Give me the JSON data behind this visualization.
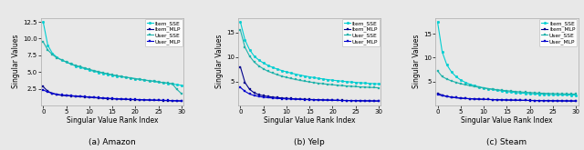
{
  "subplots": [
    {
      "title": "(a) Amazon",
      "xlabel": "Singular Value Rank Index",
      "ylabel": "Singular Values",
      "series": {
        "Item_SSE": {
          "color": "#00CED1",
          "marker": "o",
          "markersize": 2.0,
          "linewidth": 0.8,
          "values": [
            12.5,
            9.0,
            7.8,
            7.2,
            6.8,
            6.5,
            6.2,
            5.9,
            5.7,
            5.5,
            5.3,
            5.1,
            4.95,
            4.8,
            4.65,
            4.5,
            4.4,
            4.3,
            4.2,
            4.1,
            4.0,
            3.9,
            3.8,
            3.7,
            3.6,
            3.5,
            3.4,
            3.3,
            3.2,
            3.1,
            3.0
          ]
        },
        "Item_MLP": {
          "color": "#00008B",
          "marker": "s",
          "markersize": 2.0,
          "linewidth": 0.8,
          "values": [
            2.8,
            2.1,
            1.8,
            1.6,
            1.5,
            1.45,
            1.4,
            1.35,
            1.3,
            1.25,
            1.2,
            1.15,
            1.1,
            1.05,
            1.0,
            0.97,
            0.94,
            0.91,
            0.88,
            0.86,
            0.84,
            0.82,
            0.8,
            0.78,
            0.76,
            0.74,
            0.72,
            0.7,
            0.68,
            0.66,
            0.64
          ]
        },
        "User_SSE": {
          "color": "#20B2AA",
          "marker": "s",
          "markersize": 2.0,
          "linewidth": 0.8,
          "values": [
            9.5,
            8.3,
            7.6,
            7.1,
            6.8,
            6.5,
            6.2,
            6.0,
            5.8,
            5.6,
            5.4,
            5.2,
            5.05,
            4.88,
            4.72,
            4.58,
            4.44,
            4.32,
            4.2,
            4.1,
            3.98,
            3.88,
            3.78,
            3.68,
            3.6,
            3.5,
            3.42,
            3.32,
            3.22,
            2.4,
            1.75
          ]
        },
        "User_MLP": {
          "color": "#0000CD",
          "marker": "s",
          "markersize": 2.0,
          "linewidth": 0.8,
          "values": [
            2.3,
            2.0,
            1.8,
            1.65,
            1.55,
            1.5,
            1.45,
            1.4,
            1.35,
            1.3,
            1.25,
            1.2,
            1.15,
            1.1,
            1.06,
            1.02,
            0.99,
            0.96,
            0.93,
            0.9,
            0.88,
            0.85,
            0.83,
            0.81,
            0.79,
            0.77,
            0.75,
            0.73,
            0.71,
            0.69,
            0.67
          ]
        }
      }
    },
    {
      "title": "(b) Yelp",
      "xlabel": "Singular Value Rank Index",
      "ylabel": "Singular Values",
      "series": {
        "Item_SSE": {
          "color": "#00CED1",
          "marker": "o",
          "markersize": 2.0,
          "linewidth": 0.8,
          "values": [
            17.2,
            13.5,
            11.5,
            10.2,
            9.4,
            8.8,
            8.3,
            7.9,
            7.55,
            7.25,
            6.98,
            6.74,
            6.52,
            6.32,
            6.13,
            5.96,
            5.8,
            5.65,
            5.52,
            5.4,
            5.28,
            5.18,
            5.08,
            4.99,
            4.91,
            4.83,
            4.76,
            4.7,
            4.63,
            4.57,
            4.52
          ]
        },
        "Item_MLP": {
          "color": "#00008B",
          "marker": "s",
          "markersize": 2.0,
          "linewidth": 0.8,
          "values": [
            8.0,
            4.8,
            3.4,
            2.7,
            2.3,
            2.1,
            1.95,
            1.82,
            1.72,
            1.64,
            1.57,
            1.51,
            1.46,
            1.42,
            1.38,
            1.34,
            1.31,
            1.28,
            1.25,
            1.22,
            1.2,
            1.17,
            1.15,
            1.13,
            1.11,
            1.09,
            1.08,
            1.06,
            1.05,
            1.03,
            1.02
          ]
        },
        "User_SSE": {
          "color": "#20B2AA",
          "marker": "s",
          "markersize": 2.0,
          "linewidth": 0.8,
          "values": [
            15.5,
            12.0,
            10.2,
            9.0,
            8.2,
            7.6,
            7.1,
            6.75,
            6.4,
            6.1,
            5.85,
            5.62,
            5.42,
            5.23,
            5.07,
            4.92,
            4.78,
            4.66,
            4.54,
            4.44,
            4.34,
            4.25,
            4.17,
            4.1,
            4.03,
            3.97,
            3.91,
            3.86,
            3.81,
            3.77,
            3.72
          ]
        },
        "User_MLP": {
          "color": "#0000CD",
          "marker": "s",
          "markersize": 2.0,
          "linewidth": 0.8,
          "values": [
            3.8,
            3.0,
            2.45,
            2.15,
            1.95,
            1.8,
            1.7,
            1.62,
            1.55,
            1.5,
            1.45,
            1.41,
            1.37,
            1.34,
            1.31,
            1.28,
            1.25,
            1.23,
            1.21,
            1.18,
            1.16,
            1.14,
            1.12,
            1.11,
            1.09,
            1.08,
            1.06,
            1.05,
            1.04,
            1.02,
            1.01
          ]
        }
      }
    },
    {
      "title": "(c) Steam",
      "xlabel": "Singular Value Rank Index",
      "ylabel": "Singular Values",
      "series": {
        "Item_SSE": {
          "color": "#00CED1",
          "marker": "o",
          "markersize": 2.0,
          "linewidth": 0.8,
          "values": [
            17.5,
            11.2,
            8.5,
            7.0,
            6.0,
            5.3,
            4.8,
            4.4,
            4.1,
            3.85,
            3.65,
            3.45,
            3.28,
            3.12,
            2.98,
            2.85,
            2.74,
            2.64,
            2.55,
            2.48,
            2.42,
            2.37,
            2.32,
            2.28,
            2.25,
            2.22,
            2.19,
            2.17,
            2.15,
            2.13,
            2.12
          ]
        },
        "Item_MLP": {
          "color": "#00008B",
          "marker": "s",
          "markersize": 2.0,
          "linewidth": 0.8,
          "values": [
            2.5,
            2.1,
            1.85,
            1.68,
            1.56,
            1.47,
            1.4,
            1.35,
            1.3,
            1.26,
            1.22,
            1.19,
            1.16,
            1.13,
            1.11,
            1.08,
            1.06,
            1.04,
            1.02,
            1.01,
            0.99,
            0.98,
            0.96,
            0.95,
            0.94,
            0.92,
            0.91,
            0.9,
            0.89,
            0.88,
            0.87
          ]
        },
        "User_SSE": {
          "color": "#20B2AA",
          "marker": "s",
          "markersize": 2.0,
          "linewidth": 0.8,
          "values": [
            7.2,
            6.0,
            5.5,
            5.1,
            4.8,
            4.5,
            4.3,
            4.1,
            3.9,
            3.75,
            3.6,
            3.47,
            3.35,
            3.24,
            3.13,
            3.03,
            2.94,
            2.86,
            2.78,
            2.71,
            2.65,
            2.59,
            2.54,
            2.5,
            2.46,
            2.43,
            2.4,
            2.38,
            2.36,
            2.34,
            2.33
          ]
        },
        "User_MLP": {
          "color": "#0000CD",
          "marker": "s",
          "markersize": 2.0,
          "linewidth": 0.8,
          "values": [
            2.2,
            2.0,
            1.82,
            1.68,
            1.56,
            1.47,
            1.4,
            1.35,
            1.3,
            1.26,
            1.22,
            1.19,
            1.16,
            1.13,
            1.11,
            1.08,
            1.06,
            1.04,
            1.02,
            1.0,
            0.98,
            0.96,
            0.95,
            0.93,
            0.92,
            0.91,
            0.9,
            0.89,
            0.88,
            0.87,
            0.86
          ]
        }
      }
    }
  ],
  "legend_labels": [
    "Item_SSE",
    "Item_MLP",
    "User_SSE",
    "User_MLP"
  ],
  "xticks": [
    0,
    5,
    10,
    15,
    20,
    25,
    30
  ],
  "n_points": 31,
  "bg_color": "#e8e8e8"
}
